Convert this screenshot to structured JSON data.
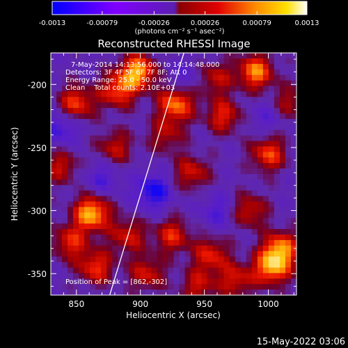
{
  "chart_data": {
    "type": "heatmap",
    "title": "Reconstructed RHESSI Image",
    "xlabel": "Heliocentric X (arcsec)",
    "ylabel": "Heliocentric Y (arcsec)",
    "xlim": [
      830,
      1022
    ],
    "ylim": [
      -367,
      -175
    ],
    "x_ticks": [
      "850",
      "900",
      "950",
      "1000"
    ],
    "y_ticks": [
      "-200",
      "-250",
      "-300",
      "-350"
    ],
    "x_tick_values": [
      850,
      900,
      950,
      1000
    ],
    "y_tick_values": [
      -200,
      -250,
      -300,
      -350
    ],
    "colorbar": {
      "range": [
        -0.0013,
        0.0013
      ],
      "tick_labels": [
        "-0.0013",
        "-0.00079",
        "-0.00026",
        "0.00026",
        "0.00079",
        "0.0013"
      ],
      "tick_values": [
        -0.0013,
        -0.00079,
        -0.00026,
        0.00026,
        0.00079,
        0.0013
      ],
      "units": "(photons cm⁻² s⁻¹ asec⁻²)"
    },
    "annotations": [
      "7-May-2014 14:13:56.000 to 14:14:48.000",
      "Detectors: 3F 4F 5F 6F 7F 8F; Att 0",
      "Energy Range: 25.0 - 50.0 keV",
      "Clean    Total counts: 2.10E+03"
    ],
    "peak_label": "Position of Peak = [862,-302]",
    "peak": [
      862,
      -302
    ],
    "limb_line": [
      [
        876,
        -367
      ],
      [
        934,
        -175
      ]
    ],
    "hotspots": [
      {
        "x": 862,
        "y": -302,
        "v": 1.0
      },
      {
        "x": 898,
        "y": -190,
        "v": 0.95
      },
      {
        "x": 928,
        "y": -215,
        "v": 0.85
      },
      {
        "x": 850,
        "y": -215,
        "v": 0.7
      },
      {
        "x": 882,
        "y": -205,
        "v": 0.7
      },
      {
        "x": 865,
        "y": -345,
        "v": 0.65
      },
      {
        "x": 905,
        "y": -350,
        "v": 0.55
      },
      {
        "x": 965,
        "y": -225,
        "v": 0.6
      },
      {
        "x": 990,
        "y": -190,
        "v": 0.85
      },
      {
        "x": 1000,
        "y": -255,
        "v": 0.7
      },
      {
        "x": 1010,
        "y": -330,
        "v": 0.8
      },
      {
        "x": 1003,
        "y": -345,
        "v": 0.9
      },
      {
        "x": 985,
        "y": -300,
        "v": 0.55
      },
      {
        "x": 955,
        "y": -335,
        "v": 0.6
      },
      {
        "x": 940,
        "y": -270,
        "v": 0.55
      },
      {
        "x": 925,
        "y": -320,
        "v": 0.6
      },
      {
        "x": 838,
        "y": -265,
        "v": 0.5
      },
      {
        "x": 845,
        "y": -325,
        "v": 0.6
      },
      {
        "x": 880,
        "y": -250,
        "v": 0.5
      },
      {
        "x": 958,
        "y": -195,
        "v": 0.5
      },
      {
        "x": 1015,
        "y": -215,
        "v": 0.45
      },
      {
        "x": 975,
        "y": -355,
        "v": 0.55
      },
      {
        "x": 890,
        "y": -320,
        "v": 0.55
      },
      {
        "x": 920,
        "y": -240,
        "v": 0.45
      },
      {
        "x": 945,
        "y": -360,
        "v": 0.5
      }
    ],
    "coldspots": [
      {
        "x": 910,
        "y": -285,
        "v": -0.6
      },
      {
        "x": 838,
        "y": -235,
        "v": -0.45
      },
      {
        "x": 870,
        "y": -275,
        "v": -0.35
      },
      {
        "x": 960,
        "y": -300,
        "v": -0.35
      },
      {
        "x": 1000,
        "y": -225,
        "v": -0.3
      },
      {
        "x": 935,
        "y": -195,
        "v": -0.3
      }
    ]
  },
  "footer": {
    "timestamp": "15-May-2022 03:06"
  },
  "colors": {
    "background": "#000000",
    "foreground": "#ffffff",
    "limb_line": "#ffffff"
  }
}
